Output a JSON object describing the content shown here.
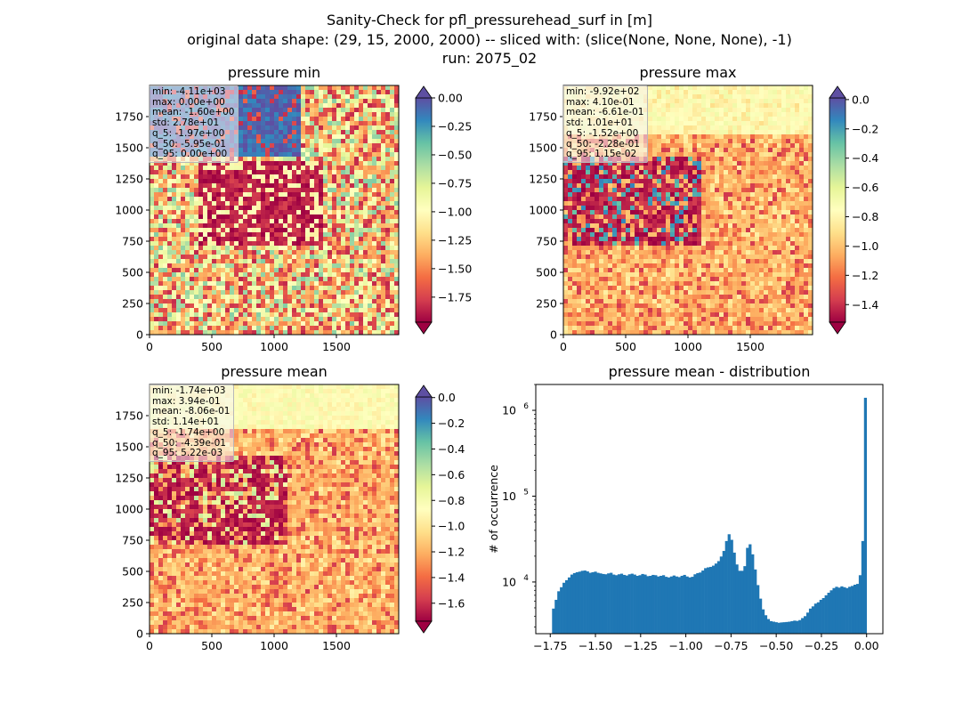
{
  "figure_title": [
    "Sanity-Check for pfl_pressurehead_surf in [m]",
    "original data shape: (29, 15, 2000, 2000) -- sliced with: (slice(None, None, None), -1)",
    "run: 2075_02"
  ],
  "colors": {
    "spectral": [
      "#9e0142",
      "#d53e4f",
      "#f46d43",
      "#fdae61",
      "#fee08b",
      "#ffffbf",
      "#e6f598",
      "#abdda4",
      "#66c2a5",
      "#3288bd",
      "#5e4fa2"
    ],
    "hist_bar": "#1f77b4"
  },
  "maps": [
    {
      "title": "pressure min",
      "stats": [
        "min: -4.11e+03",
        "max: 0.00e+00",
        "mean: -1.60e+00",
        "std: 2.78e+01",
        "q_5: -1.97e+00",
        "q_50: -5.95e-01",
        "q_95: 0.00e+00"
      ],
      "x_ticks": [
        "0",
        "500",
        "1000",
        "1500"
      ],
      "y_ticks": [
        "0",
        "250",
        "500",
        "750",
        "1000",
        "1250",
        "1500",
        "1750"
      ],
      "colorbar": {
        "vmin": -1.97,
        "vmax": 0.0,
        "extend": "both",
        "ticks": [
          "0.00",
          "−0.25",
          "−0.50",
          "−0.75",
          "−1.00",
          "−1.25",
          "−1.50",
          "−1.75"
        ],
        "tick_values": [
          0,
          -0.25,
          -0.5,
          -0.75,
          -1.0,
          -1.25,
          -1.5,
          -1.75
        ]
      }
    },
    {
      "title": "pressure max",
      "stats": [
        "min: -9.92e+02",
        "max: 4.10e-01",
        "mean: -6.61e-01",
        "std: 1.01e+01",
        "q_5: -1.52e+00",
        "q_50: -2.28e-01",
        "q_95: 1.15e-02"
      ],
      "x_ticks": [
        "0",
        "500",
        "1000",
        "1500"
      ],
      "y_ticks": [
        "0",
        "250",
        "500",
        "750",
        "1000",
        "1250",
        "1500",
        "1750"
      ],
      "colorbar": {
        "vmin": -1.52,
        "vmax": 0.0115,
        "extend": "both",
        "ticks": [
          "0.0",
          "−0.2",
          "−0.4",
          "−0.6",
          "−0.8",
          "−1.0",
          "−1.2",
          "−1.4"
        ],
        "tick_values": [
          0,
          -0.2,
          -0.4,
          -0.6,
          -0.8,
          -1.0,
          -1.2,
          -1.4
        ]
      }
    },
    {
      "title": "pressure mean",
      "stats": [
        "min: -1.74e+03",
        "max: 3.94e-01",
        "mean: -8.06e-01",
        "std: 1.14e+01",
        "q_5: -1.74e+00",
        "q_50: -4.39e-01",
        "q_95: 5.22e-03"
      ],
      "x_ticks": [
        "0",
        "500",
        "1000",
        "1500"
      ],
      "y_ticks": [
        "0",
        "250",
        "500",
        "750",
        "1000",
        "1250",
        "1500",
        "1750"
      ],
      "colorbar": {
        "vmin": -1.74,
        "vmax": 0.005,
        "extend": "both",
        "ticks": [
          "0.0",
          "−0.2",
          "−0.4",
          "−0.6",
          "−0.8",
          "−1.0",
          "−1.2",
          "−1.4",
          "−1.6"
        ],
        "tick_values": [
          0,
          -0.2,
          -0.4,
          -0.6,
          -0.8,
          -1.0,
          -1.2,
          -1.4,
          -1.6
        ]
      }
    }
  ],
  "chart_data": {
    "type": "bar",
    "title": "pressure mean - distribution",
    "xlabel": "",
    "ylabel": "# of occurrence",
    "yscale": "log",
    "xlim": [
      -1.83,
      0.09
    ],
    "ylim": [
      2500,
      2000000
    ],
    "x_ticks": [
      "−1.75",
      "−1.50",
      "−1.25",
      "−1.00",
      "−0.75",
      "−0.50",
      "−0.25",
      "0.00"
    ],
    "x_tick_values": [
      -1.75,
      -1.5,
      -1.25,
      -1.0,
      -0.75,
      -0.5,
      -0.25,
      0.0
    ],
    "y_ticks": [
      {
        "base": "10",
        "exp": "4",
        "value": 10000
      },
      {
        "base": "10",
        "exp": "5",
        "value": 100000
      },
      {
        "base": "10",
        "exp": "6",
        "value": 1000000
      }
    ],
    "bin_range": [
      -1.74,
      0.0
    ],
    "values": [
      4900,
      6200,
      7800,
      8700,
      9800,
      10500,
      11300,
      12200,
      12700,
      13000,
      13200,
      13500,
      13600,
      13300,
      12800,
      13000,
      13200,
      12800,
      12600,
      12400,
      12300,
      12600,
      12800,
      12200,
      12000,
      12300,
      12500,
      12100,
      11900,
      12300,
      12500,
      12200,
      11800,
      12000,
      12400,
      12200,
      11700,
      11800,
      12100,
      12000,
      11600,
      11800,
      12000,
      11500,
      11300,
      11600,
      11900,
      11600,
      11400,
      11800,
      12100,
      11600,
      11300,
      11500,
      12300,
      12700,
      12900,
      13600,
      14500,
      14800,
      15000,
      15500,
      16400,
      17500,
      19800,
      23000,
      30000,
      36000,
      31000,
      22000,
      16000,
      13500,
      13500,
      15300,
      25000,
      27500,
      21000,
      14000,
      9200,
      6400,
      4800,
      4100,
      3700,
      3500,
      3450,
      3400,
      3350,
      3380,
      3400,
      3420,
      3450,
      3500,
      3550,
      3520,
      3600,
      3800,
      4000,
      4400,
      4900,
      5200,
      5600,
      5800,
      6200,
      6500,
      7000,
      7500,
      8000,
      8500,
      8800,
      8600,
      8900,
      8700,
      8500,
      8800,
      9000,
      9300,
      9500,
      12000,
      30000,
      1400000
    ]
  }
}
